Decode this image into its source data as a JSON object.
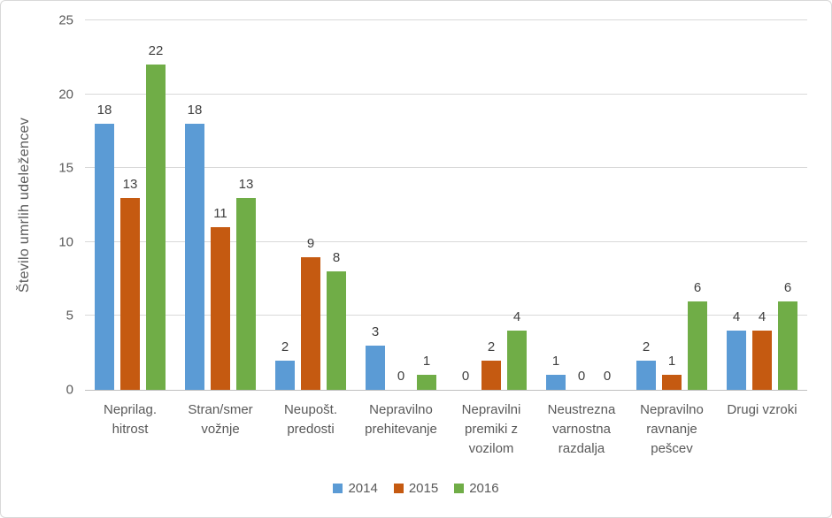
{
  "chart": {
    "background_color": "#FFFFFF",
    "border_color": "#D8D8D8",
    "grid_color": "#D9D9D9",
    "axis_line_color": "#BFBFBF",
    "tick_text_color": "#595959",
    "value_label_color": "#404040"
  },
  "chart_data": {
    "type": "bar",
    "title": "",
    "xlabel": "",
    "ylabel": "Število umrlih udeležencev",
    "ylim": [
      0,
      25
    ],
    "yticks": [
      0,
      5,
      10,
      15,
      20,
      25
    ],
    "grid": true,
    "bar_value_labels": true,
    "legend_position": "bottom",
    "categories": [
      "Neprilag. hitrost",
      "Stran/smer vožnje",
      "Neupošt. predosti",
      "Nepravilno prehitevanje",
      "Nepravilni premiki z vozilom",
      "Neustrezna varnostna razdalja",
      "Nepravilno ravnanje pešcev",
      "Drugi vzroki"
    ],
    "series": [
      {
        "name": "2014",
        "color": "#5B9BD5",
        "values": [
          18,
          18,
          2,
          3,
          0,
          1,
          2,
          4
        ]
      },
      {
        "name": "2015",
        "color": "#C55A11",
        "values": [
          13,
          11,
          9,
          0,
          2,
          0,
          1,
          4
        ]
      },
      {
        "name": "2016",
        "color": "#70AD47",
        "values": [
          22,
          13,
          8,
          1,
          4,
          0,
          6,
          6
        ]
      }
    ]
  }
}
